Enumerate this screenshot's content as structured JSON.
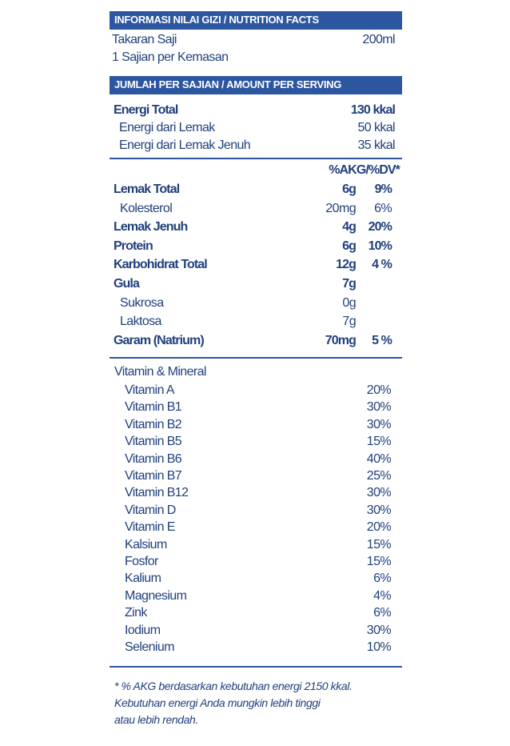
{
  "header": {
    "title": "INFORMASI NILAI GIZI / NUTRITION FACTS"
  },
  "serving": {
    "size_label": "Takaran Saji",
    "size_value": "200ml",
    "per_pack": "1 Sajian per Kemasan"
  },
  "amount_header": "JUMLAH PER SAJIAN / AMOUNT PER SERVING",
  "energy": [
    {
      "label": "Energi Total",
      "value": "130 kkal"
    },
    {
      "label": "Energi dari Lemak",
      "value": "50 kkal"
    },
    {
      "label": "Energi dari Lemak Jenuh",
      "value": "35 kkal"
    }
  ],
  "nutrients": {
    "column_header": "%AKG/%DV*",
    "rows": [
      {
        "label": "Lemak Total",
        "amount": "6g",
        "dv": "9%"
      },
      {
        "label": "Kolesterol",
        "amount": "20mg",
        "dv": "6%"
      },
      {
        "label": "Lemak Jenuh",
        "amount": "4g",
        "dv": "20%"
      },
      {
        "label": "Protein",
        "amount": "6g",
        "dv": "10%"
      },
      {
        "label": "Karbohidrat Total",
        "amount": "12g",
        "dv": "4 %"
      },
      {
        "label": "Gula",
        "amount": "7g"
      },
      {
        "label": "Sukrosa",
        "amount": "0g"
      },
      {
        "label": "Laktosa",
        "amount": "7g"
      },
      {
        "label": "Garam (Natrium)",
        "amount": "70mg",
        "dv": "5 %"
      }
    ]
  },
  "vitamins": {
    "title": "Vitamin & Mineral",
    "rows": [
      {
        "label": "Vitamin A",
        "dv": "20%"
      },
      {
        "label": "Vitamin B1",
        "dv": "30%"
      },
      {
        "label": "Vitamin B2",
        "dv": "30%"
      },
      {
        "label": "Vitamin B5",
        "dv": "15%"
      },
      {
        "label": "Vitamin B6",
        "dv": "40%"
      },
      {
        "label": "Vitamin B7",
        "dv": "25%"
      },
      {
        "label": "Vitamin B12",
        "dv": "30%"
      },
      {
        "label": "Vitamin D",
        "dv": "30%"
      },
      {
        "label": "Vitamin E",
        "dv": "20%"
      },
      {
        "label": "Kalsium",
        "dv": "15%"
      },
      {
        "label": "Fosfor",
        "dv": "15%"
      },
      {
        "label": "Kalium",
        "dv": "6%"
      },
      {
        "label": "Magnesium",
        "dv": "4%"
      },
      {
        "label": "Zink",
        "dv": "6%"
      },
      {
        "label": "Iodium",
        "dv": "30%"
      },
      {
        "label": "Selenium",
        "dv": "10%"
      }
    ]
  },
  "footnote": [
    "* % AKG berdasarkan kebutuhan energi 2150 kkal.",
    "Kebutuhan energi Anda mungkin lebih tinggi",
    "atau lebih rendah."
  ]
}
